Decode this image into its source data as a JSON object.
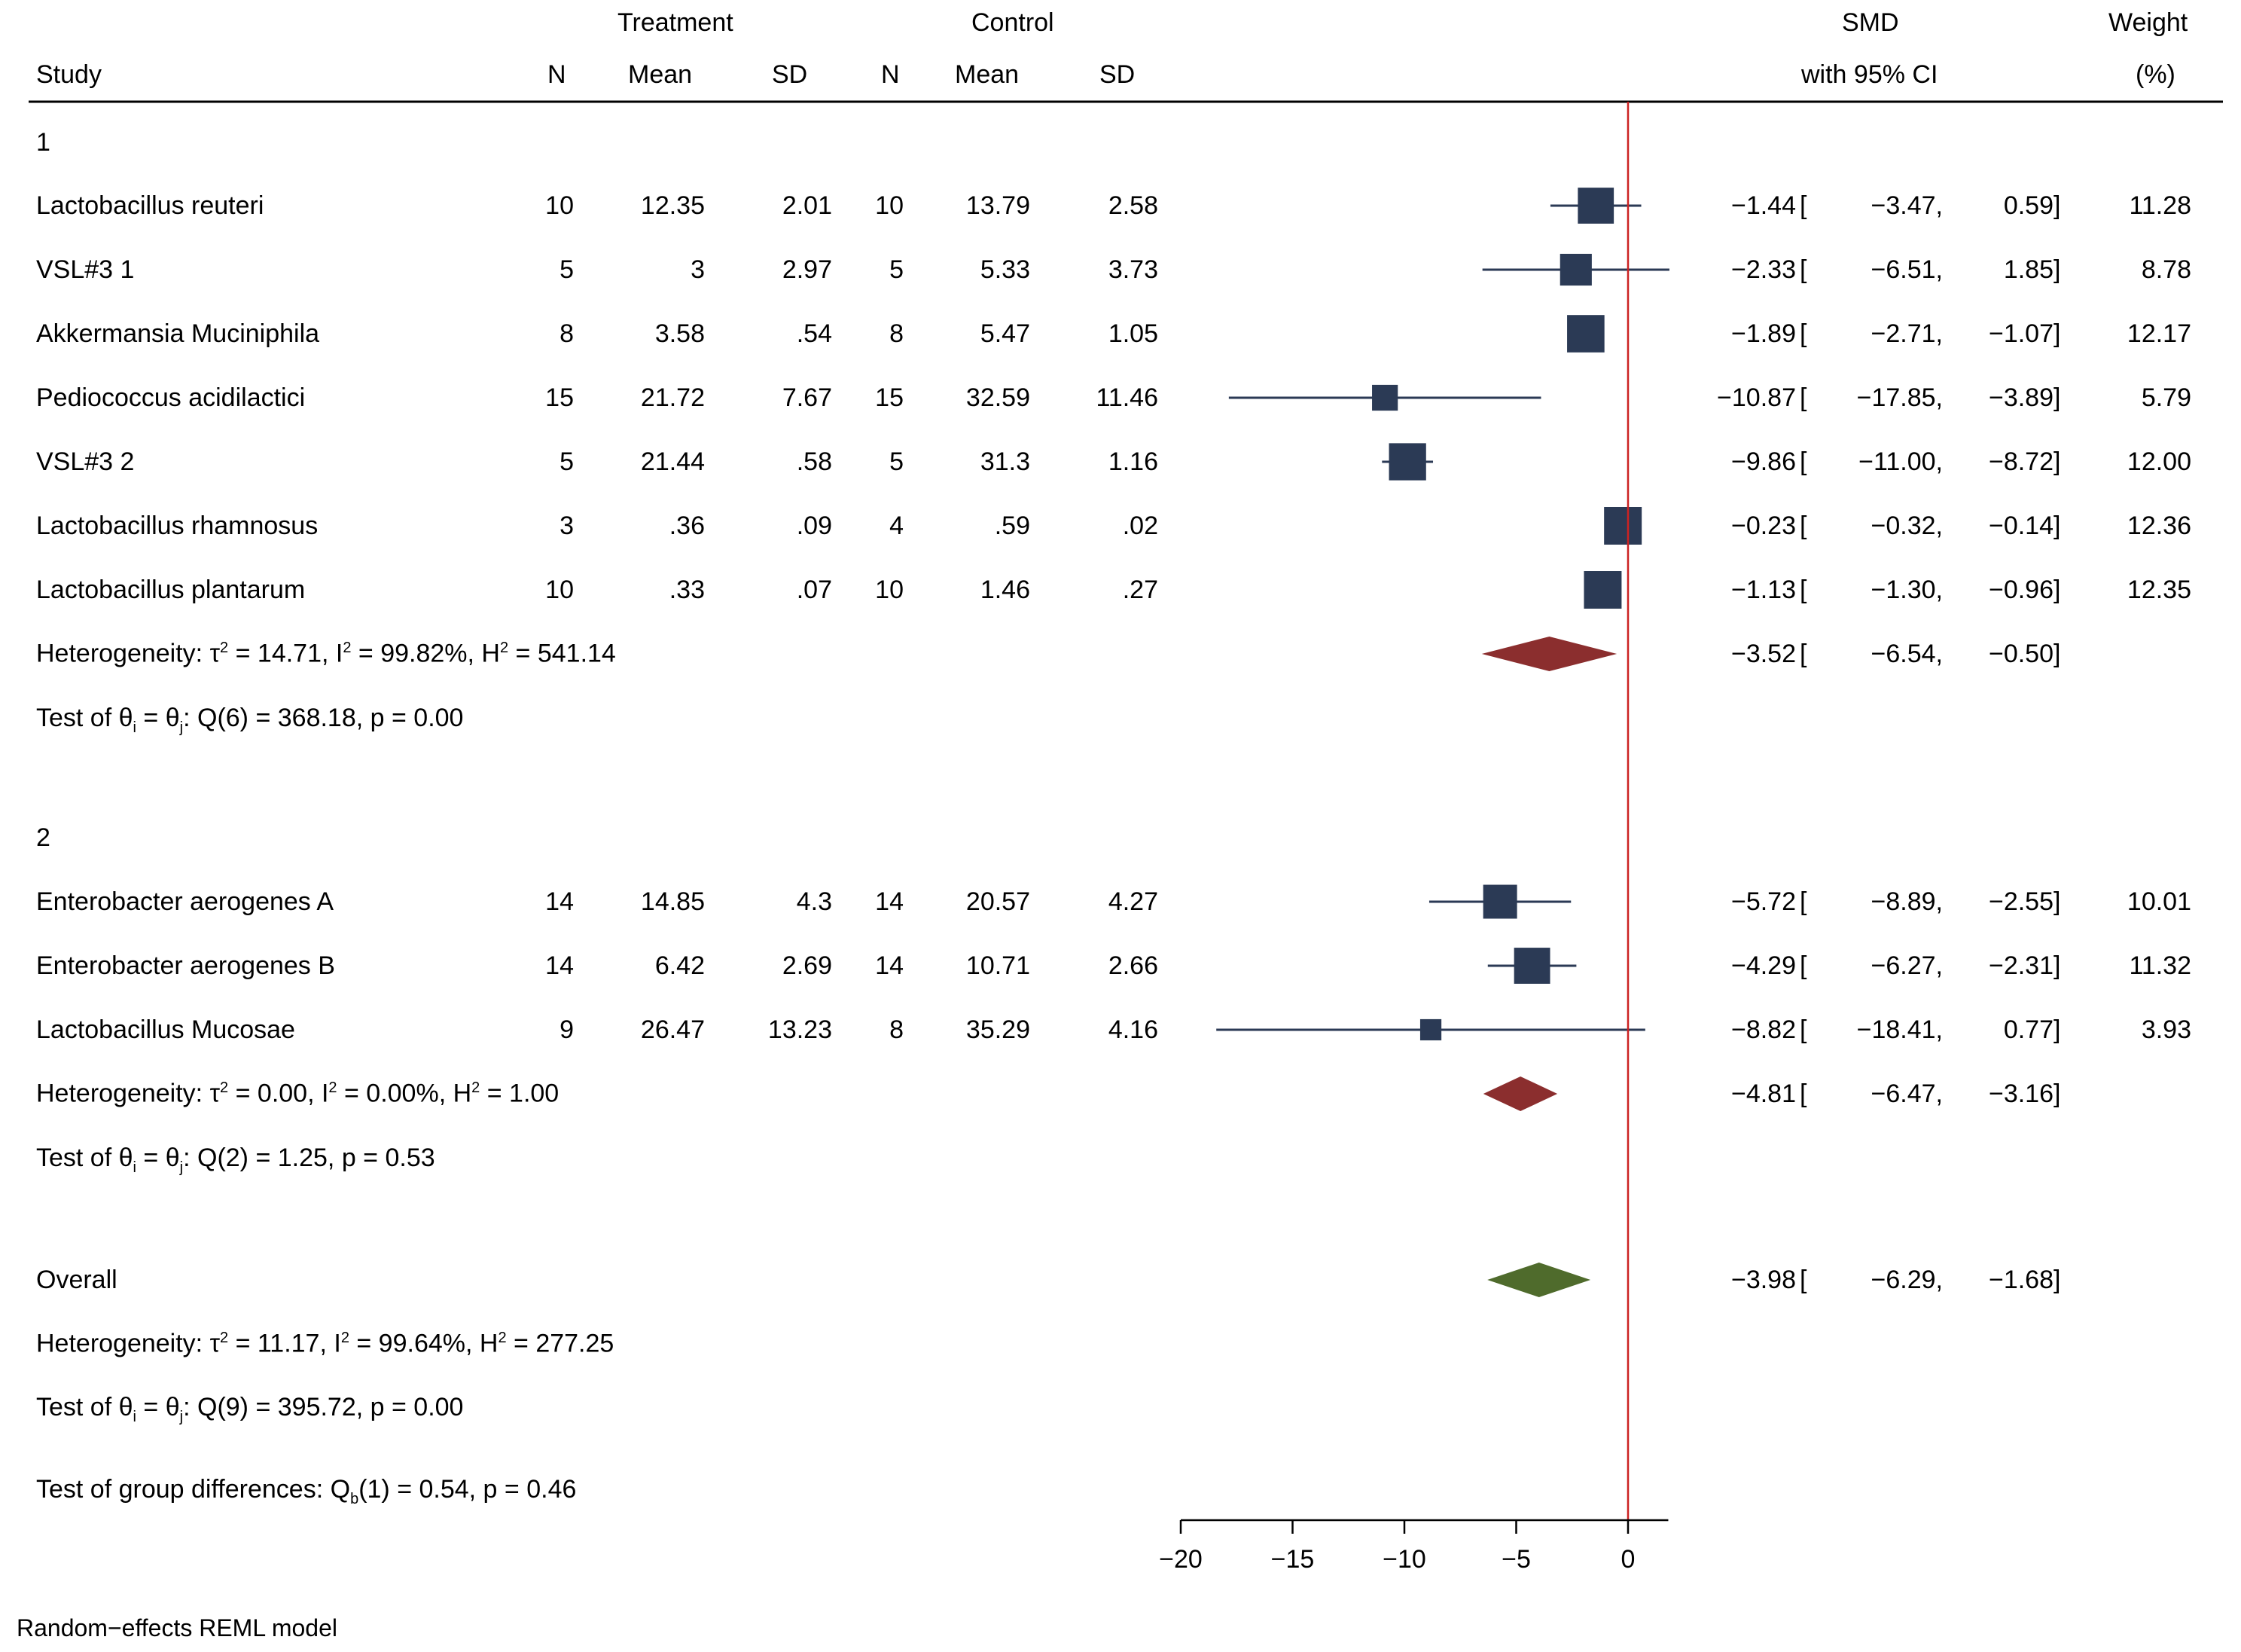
{
  "header": {
    "treatment": "Treatment",
    "control": "Control",
    "smd": "SMD",
    "weight": "Weight",
    "study": "Study",
    "n": "N",
    "mean": "Mean",
    "sd": "SD",
    "ci": "with 95% CI",
    "weight_unit": "(%)"
  },
  "footer": "Random−effects REML model",
  "colors": {
    "study_marker": "#2b3a55",
    "subgroup_diamond": "#8b2e2e",
    "overall_diamond": "#4f6b2c",
    "null_line": "#cc2222"
  },
  "chart_data": {
    "type": "forest",
    "xlabel": "",
    "xlim": [
      -20,
      1.8
    ],
    "ticks": [
      -20,
      -15,
      -10,
      -5,
      0
    ],
    "tick_labels": [
      "−20",
      "−15",
      "−10",
      "−5",
      "0"
    ],
    "null_value": 0,
    "groups": [
      {
        "label": "1",
        "studies": [
          {
            "name": "Lactobacillus reuteri",
            "tn": "10",
            "tmean": "12.35",
            "tsd": "2.01",
            "cn": "10",
            "cmean": "13.79",
            "csd": "2.58",
            "smd": -1.44,
            "lo": -3.47,
            "hi": 0.59,
            "smd_s": "−1.44",
            "lo_s": "−3.47,",
            "hi_s": "0.59",
            "weight": 11.28,
            "weight_s": "11.28"
          },
          {
            "name": "VSL#3 1",
            "tn": "5",
            "tmean": "3",
            "tsd": "2.97",
            "cn": "5",
            "cmean": "5.33",
            "csd": "3.73",
            "smd": -2.33,
            "lo": -6.51,
            "hi": 1.85,
            "smd_s": "−2.33",
            "lo_s": "−6.51,",
            "hi_s": "1.85",
            "weight": 8.78,
            "weight_s": "8.78"
          },
          {
            "name": "Akkermansia Muciniphila",
            "tn": "8",
            "tmean": "3.58",
            "tsd": ".54",
            "cn": "8",
            "cmean": "5.47",
            "csd": "1.05",
            "smd": -1.89,
            "lo": -2.71,
            "hi": -1.07,
            "smd_s": "−1.89",
            "lo_s": "−2.71,",
            "hi_s": "−1.07",
            "weight": 12.17,
            "weight_s": "12.17"
          },
          {
            "name": "Pediococcus acidilactici",
            "tn": "15",
            "tmean": "21.72",
            "tsd": "7.67",
            "cn": "15",
            "cmean": "32.59",
            "csd": "11.46",
            "smd": -10.87,
            "lo": -17.85,
            "hi": -3.89,
            "smd_s": "−10.87",
            "lo_s": "−17.85,",
            "hi_s": "−3.89",
            "weight": 5.79,
            "weight_s": "5.79"
          },
          {
            "name": "VSL#3 2",
            "tn": "5",
            "tmean": "21.44",
            "tsd": ".58",
            "cn": "5",
            "cmean": "31.3",
            "csd": "1.16",
            "smd": -9.86,
            "lo": -11.0,
            "hi": -8.72,
            "smd_s": "−9.86",
            "lo_s": "−11.00,",
            "hi_s": "−8.72",
            "weight": 12.0,
            "weight_s": "12.00"
          },
          {
            "name": "Lactobacillus rhamnosus",
            "tn": "3",
            "tmean": ".36",
            "tsd": ".09",
            "cn": "4",
            "cmean": ".59",
            "csd": ".02",
            "smd": -0.23,
            "lo": -0.32,
            "hi": -0.14,
            "smd_s": "−0.23",
            "lo_s": "−0.32,",
            "hi_s": "−0.14",
            "weight": 12.36,
            "weight_s": "12.36"
          },
          {
            "name": "Lactobacillus plantarum",
            "tn": "10",
            "tmean": ".33",
            "tsd": ".07",
            "cn": "10",
            "cmean": "1.46",
            "csd": ".27",
            "smd": -1.13,
            "lo": -1.3,
            "hi": -0.96,
            "smd_s": "−1.13",
            "lo_s": "−1.30,",
            "hi_s": "−0.96",
            "weight": 12.35,
            "weight_s": "12.35"
          }
        ],
        "pooled": {
          "smd": -3.52,
          "lo": -6.54,
          "hi": -0.5,
          "smd_s": "−3.52",
          "lo_s": "−6.54,",
          "hi_s": "−0.50"
        },
        "heterogeneity": {
          "prefix": "Heterogeneity: ",
          "tau2": "= 14.71",
          "i2": "= 99.82%",
          "h2": "= 541.14"
        },
        "test": {
          "q": "Q(6) = 368.18, p = 0.00"
        }
      },
      {
        "label": "2",
        "studies": [
          {
            "name": "Enterobacter aerogenes A",
            "tn": "14",
            "tmean": "14.85",
            "tsd": "4.3",
            "cn": "14",
            "cmean": "20.57",
            "csd": "4.27",
            "smd": -5.72,
            "lo": -8.89,
            "hi": -2.55,
            "smd_s": "−5.72",
            "lo_s": "−8.89,",
            "hi_s": "−2.55",
            "weight": 10.01,
            "weight_s": "10.01"
          },
          {
            "name": "Enterobacter aerogenes B",
            "tn": "14",
            "tmean": "6.42",
            "tsd": "2.69",
            "cn": "14",
            "cmean": "10.71",
            "csd": "2.66",
            "smd": -4.29,
            "lo": -6.27,
            "hi": -2.31,
            "smd_s": "−4.29",
            "lo_s": "−6.27,",
            "hi_s": "−2.31",
            "weight": 11.32,
            "weight_s": "11.32"
          },
          {
            "name": "Lactobacillus Mucosae",
            "tn": "9",
            "tmean": "26.47",
            "tsd": "13.23",
            "cn": "8",
            "cmean": "35.29",
            "csd": "4.16",
            "smd": -8.82,
            "lo": -18.41,
            "hi": 0.77,
            "smd_s": "−8.82",
            "lo_s": "−18.41,",
            "hi_s": "0.77",
            "weight": 3.93,
            "weight_s": "3.93"
          }
        ],
        "pooled": {
          "smd": -4.81,
          "lo": -6.47,
          "hi": -3.16,
          "smd_s": "−4.81",
          "lo_s": "−6.47,",
          "hi_s": "−3.16"
        },
        "heterogeneity": {
          "prefix": "Heterogeneity: ",
          "tau2": "= 0.00",
          "i2": "= 0.00%",
          "h2": "= 1.00"
        },
        "test": {
          "q": "Q(2) = 1.25, p = 0.53"
        }
      }
    ],
    "overall": {
      "label": "Overall",
      "smd": -3.98,
      "lo": -6.29,
      "hi": -1.68,
      "smd_s": "−3.98",
      "lo_s": "−6.29,",
      "hi_s": "−1.68",
      "heterogeneity": {
        "prefix": "Heterogeneity: ",
        "tau2": "= 11.17",
        "i2": "= 99.64%",
        "h2": "= 277.25"
      },
      "test": {
        "q": "Q(9) = 395.72, p = 0.00"
      }
    },
    "group_difference": "Test of group differences: Q_b(1) = 0.54, p = 0.46",
    "group_difference_parts": {
      "prefix": "Test of group differences: ",
      "rest": "(1) = 0.54, p = 0.46"
    }
  }
}
